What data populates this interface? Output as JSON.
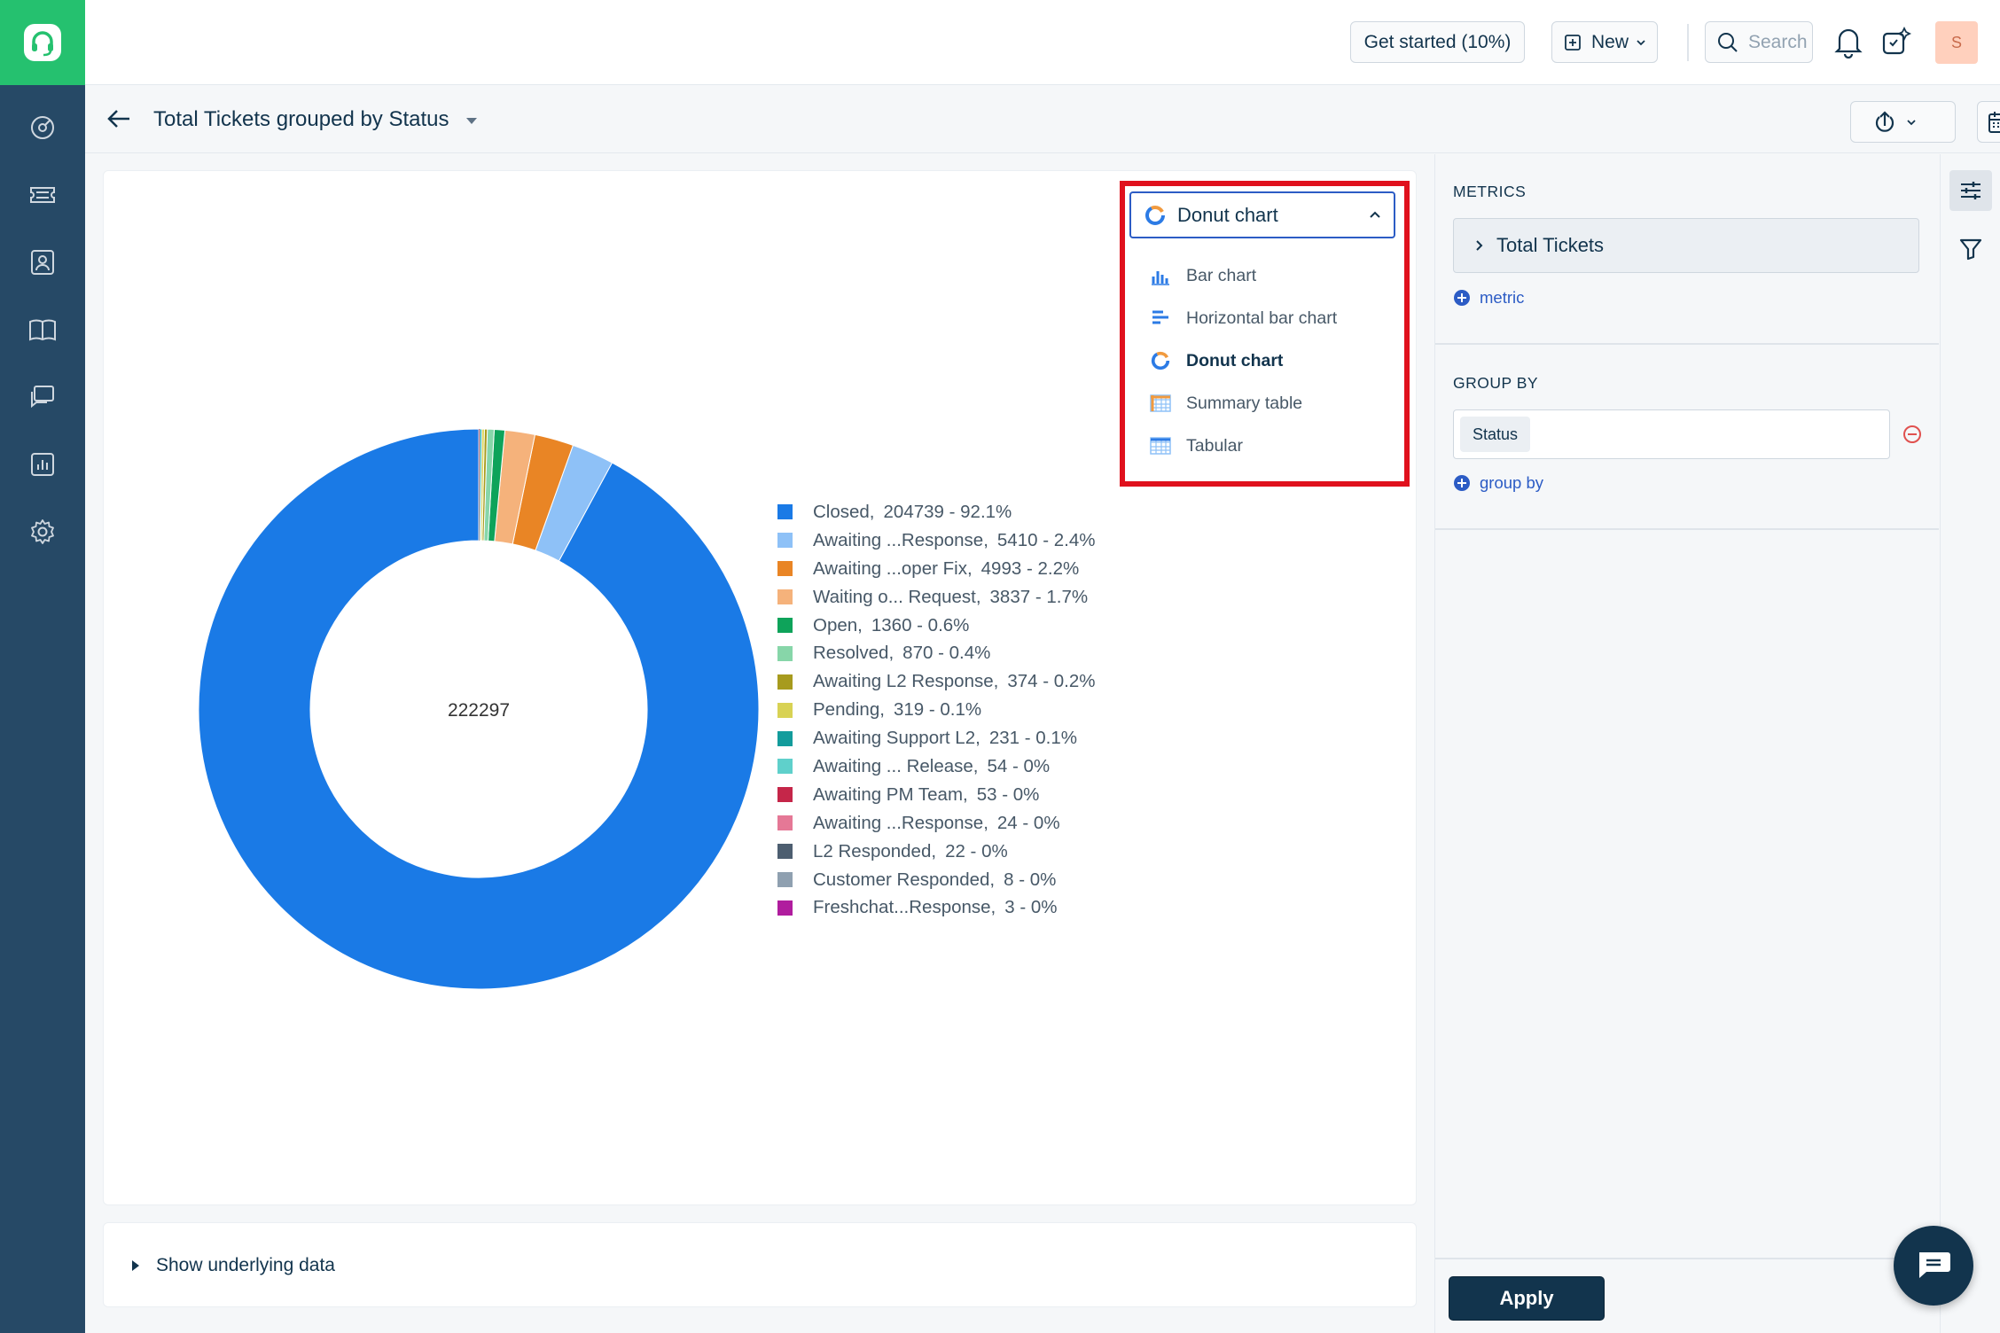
{
  "header": {
    "get_started": "Get started (10%)",
    "new_label": "New",
    "search_placeholder": "Search",
    "avatar_initial": "S"
  },
  "subheader": {
    "title": "Total Tickets grouped by Status"
  },
  "chart_selector": {
    "selected": "Donut chart",
    "options": [
      "Bar chart",
      "Horizontal bar chart",
      "Donut chart",
      "Summary table",
      "Tabular"
    ]
  },
  "chart_data": {
    "type": "pie",
    "title": "",
    "center_label": "222297",
    "slices": [
      {
        "label": "Closed,",
        "display": "204739 - 92.1%",
        "value": 204739,
        "color": "#1a7ae6"
      },
      {
        "label": "Awaiting ...Response,",
        "display": "5410 - 2.4%",
        "value": 5410,
        "color": "#8ec1f7"
      },
      {
        "label": "Awaiting ...oper Fix,",
        "display": "4993 - 2.2%",
        "value": 4993,
        "color": "#e98525"
      },
      {
        "label": "Waiting o... Request,",
        "display": "3837 - 1.7%",
        "value": 3837,
        "color": "#f5b27b"
      },
      {
        "label": "Open,",
        "display": "1360 - 0.6%",
        "value": 1360,
        "color": "#0ea35a"
      },
      {
        "label": "Resolved,",
        "display": "870 - 0.4%",
        "value": 870,
        "color": "#87d6a9"
      },
      {
        "label": "Awaiting L2 Response,",
        "display": "374 - 0.2%",
        "value": 374,
        "color": "#a79b1e"
      },
      {
        "label": "Pending,",
        "display": "319 - 0.1%",
        "value": 319,
        "color": "#d8d254"
      },
      {
        "label": "Awaiting Support L2,",
        "display": "231 - 0.1%",
        "value": 231,
        "color": "#139c9c"
      },
      {
        "label": "Awaiting ... Release,",
        "display": "54 - 0%",
        "value": 54,
        "color": "#5fd0cb"
      },
      {
        "label": "Awaiting PM Team,",
        "display": "53 - 0%",
        "value": 53,
        "color": "#c52649"
      },
      {
        "label": "Awaiting ...Response,",
        "display": "24 - 0%",
        "value": 24,
        "color": "#e57896"
      },
      {
        "label": "L2 Responded,",
        "display": "22 - 0%",
        "value": 22,
        "color": "#4d5e70"
      },
      {
        "label": "Customer Responded,",
        "display": "8 - 0%",
        "value": 8,
        "color": "#8fa0b0"
      },
      {
        "label": "Freshchat...Response,",
        "display": "3 - 0%",
        "value": 3,
        "color": "#b01d9e"
      }
    ]
  },
  "bottom": {
    "show_data": "Show underlying data"
  },
  "panel": {
    "metrics_title": "METRICS",
    "metric_item": "Total Tickets",
    "add_metric": "metric",
    "groupby_title": "GROUP BY",
    "groupby_value": "Status",
    "add_groupby": "group by",
    "apply": "Apply"
  },
  "colors": {
    "nav_bg": "#264966",
    "logo_bg": "#25c16f",
    "accent": "#2c5cc5",
    "highlight": "#e0111d"
  }
}
